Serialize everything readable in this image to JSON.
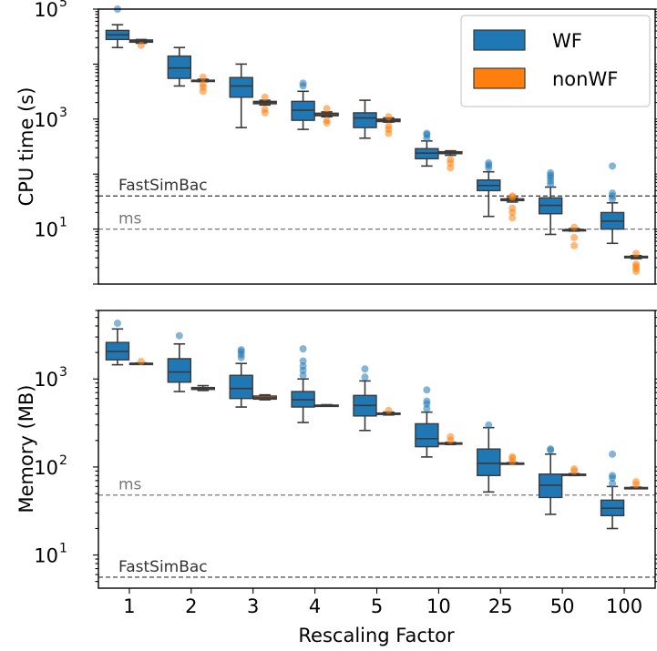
{
  "chart_data": [
    {
      "type": "box",
      "panel": "top",
      "ylabel": "CPU time (s)",
      "yscale": "log",
      "ylim": [
        1,
        100000
      ],
      "y_ticks": [
        {
          "value": 10,
          "base": "10",
          "exp": "1"
        },
        {
          "value": 1000,
          "base": "10",
          "exp": "3"
        },
        {
          "value": 100000,
          "base": "10",
          "exp": "5"
        }
      ],
      "categories": [
        "1",
        "2",
        "3",
        "4",
        "5",
        "10",
        "25",
        "50",
        "100"
      ],
      "legend": {
        "position": "top-right",
        "entries": [
          "WF",
          "nonWF"
        ]
      },
      "reference_lines": [
        {
          "label": "FastSimBac",
          "value": 40,
          "color": "#333333"
        },
        {
          "label": "ms",
          "value": 10,
          "color": "#777777"
        }
      ],
      "series": [
        {
          "name": "WF",
          "color": "#1f77b4",
          "boxes": [
            {
              "whislo": 20000,
              "q1": 28000,
              "med": 34000,
              "q3": 41000,
              "whishi": 52000,
              "fliers": [
                100000
              ]
            },
            {
              "whislo": 4000,
              "q1": 5500,
              "med": 8500,
              "q3": 14000,
              "whishi": 20000,
              "fliers": []
            },
            {
              "whislo": 700,
              "q1": 2500,
              "med": 4000,
              "q3": 5700,
              "whishi": 10000,
              "fliers": []
            },
            {
              "whislo": 650,
              "q1": 950,
              "med": 1450,
              "q3": 2100,
              "whishi": 3200,
              "fliers": [
                4000,
                4500
              ]
            },
            {
              "whislo": 450,
              "q1": 700,
              "med": 1050,
              "q3": 1300,
              "whishi": 2200,
              "fliers": []
            },
            {
              "whislo": 140,
              "q1": 190,
              "med": 240,
              "q3": 290,
              "whishi": 400,
              "fliers": [
                450,
                520,
                550
              ]
            },
            {
              "whislo": 17,
              "q1": 50,
              "med": 62,
              "q3": 78,
              "whishi": 110,
              "fliers": [
                130,
                145,
                160
              ]
            },
            {
              "whislo": 8,
              "q1": 19,
              "med": 27,
              "q3": 37,
              "whishi": 58,
              "fliers": [
                65,
                75,
                85,
                95,
                105
              ]
            },
            {
              "whislo": 5.5,
              "q1": 10,
              "med": 14,
              "q3": 20,
              "whishi": 30,
              "fliers": [
                35,
                40,
                45,
                140
              ]
            }
          ]
        },
        {
          "name": "nonWF",
          "color": "#ff7f0e",
          "boxes": [
            {
              "whislo": 24000,
              "q1": 25000,
              "med": 26000,
              "q3": 27500,
              "whishi": 28000,
              "fliers": [
                22000
              ]
            },
            {
              "whislo": 4800,
              "q1": 4900,
              "med": 5000,
              "q3": 5100,
              "whishi": 5300,
              "fliers": [
                3200,
                3800,
                4300,
                5800
              ]
            },
            {
              "whislo": 1800,
              "q1": 1900,
              "med": 2000,
              "q3": 2100,
              "whishi": 2200,
              "fliers": [
                1300,
                1500,
                2500
              ]
            },
            {
              "whislo": 1100,
              "q1": 1150,
              "med": 1200,
              "q3": 1280,
              "whishi": 1350,
              "fliers": [
                850,
                950,
                1550
              ]
            },
            {
              "whislo": 880,
              "q1": 900,
              "med": 950,
              "q3": 1000,
              "whishi": 1050,
              "fliers": [
                550,
                650,
                750,
                1100
              ]
            },
            {
              "whislo": 220,
              "q1": 235,
              "med": 245,
              "q3": 255,
              "whishi": 265,
              "fliers": [
                130,
                160,
                185
              ]
            },
            {
              "whislo": 31,
              "q1": 33,
              "med": 34,
              "q3": 35.5,
              "whishi": 37,
              "fliers": [
                16,
                20,
                24,
                38,
                40
              ]
            },
            {
              "whislo": 9.2,
              "q1": 9.4,
              "med": 9.6,
              "q3": 9.8,
              "whishi": 10.2,
              "fliers": [
                5,
                7,
                10.8
              ]
            },
            {
              "whislo": 2.9,
              "q1": 3.0,
              "med": 3.1,
              "q3": 3.2,
              "whishi": 3.3,
              "fliers": [
                1.7,
                1.9,
                2.1,
                2.3,
                3.6
              ]
            }
          ]
        }
      ]
    },
    {
      "type": "box",
      "panel": "bottom",
      "ylabel": "Memory (MB)",
      "xlabel": "Rescaling Factor",
      "yscale": "log",
      "ylim": [
        4.2,
        6000
      ],
      "y_ticks": [
        {
          "value": 10,
          "base": "10",
          "exp": "1"
        },
        {
          "value": 100,
          "base": "10",
          "exp": "2"
        },
        {
          "value": 1000,
          "base": "10",
          "exp": "3"
        }
      ],
      "categories": [
        "1",
        "2",
        "3",
        "4",
        "5",
        "10",
        "25",
        "50",
        "100"
      ],
      "reference_lines": [
        {
          "label": "ms",
          "value": 48,
          "color": "#777777"
        },
        {
          "label": "FastSimBac",
          "value": 5.6,
          "color": "#333333"
        }
      ],
      "series": [
        {
          "name": "WF",
          "color": "#1f77b4",
          "boxes": [
            {
              "whislo": 1450,
              "q1": 1650,
              "med": 2050,
              "q3": 2600,
              "whishi": 3700,
              "fliers": [
                4300
              ]
            },
            {
              "whislo": 720,
              "q1": 920,
              "med": 1200,
              "q3": 1700,
              "whishi": 2500,
              "fliers": [
                3100
              ]
            },
            {
              "whislo": 480,
              "q1": 600,
              "med": 780,
              "q3": 1100,
              "whishi": 1500,
              "fliers": [
                1750,
                1900,
                2050,
                2150
              ]
            },
            {
              "whislo": 320,
              "q1": 480,
              "med": 580,
              "q3": 720,
              "whishi": 1000,
              "fliers": [
                1100,
                1250,
                1400,
                1600,
                2200
              ]
            },
            {
              "whislo": 260,
              "q1": 380,
              "med": 500,
              "q3": 650,
              "whishi": 950,
              "fliers": [
                1050,
                1300
              ]
            },
            {
              "whislo": 130,
              "q1": 170,
              "med": 210,
              "q3": 310,
              "whishi": 420,
              "fliers": [
                460,
                520,
                560,
                750
              ]
            },
            {
              "whislo": 52,
              "q1": 80,
              "med": 110,
              "q3": 160,
              "whishi": 280,
              "fliers": [
                300
              ]
            },
            {
              "whislo": 29,
              "q1": 45,
              "med": 62,
              "q3": 83,
              "whishi": 140,
              "fliers": [
                155,
                160
              ]
            },
            {
              "whislo": 20,
              "q1": 28,
              "med": 34,
              "q3": 42,
              "whishi": 60,
              "fliers": [
                65,
                75,
                80,
                140
              ]
            }
          ]
        },
        {
          "name": "nonWF",
          "color": "#ff7f0e",
          "boxes": [
            {
              "whislo": 1480,
              "q1": 1490,
              "med": 1500,
              "q3": 1510,
              "whishi": 1520,
              "fliers": [
                1580
              ]
            },
            {
              "whislo": 740,
              "q1": 760,
              "med": 780,
              "q3": 800,
              "whishi": 840,
              "fliers": []
            },
            {
              "whislo": 580,
              "q1": 590,
              "med": 610,
              "q3": 640,
              "whishi": 660,
              "fliers": []
            },
            {
              "whislo": 490,
              "q1": 495,
              "med": 500,
              "q3": 505,
              "whishi": 510,
              "fliers": []
            },
            {
              "whislo": 390,
              "q1": 395,
              "med": 405,
              "q3": 410,
              "whishi": 420,
              "fliers": [
                440
              ]
            },
            {
              "whislo": 180,
              "q1": 182,
              "med": 185,
              "q3": 188,
              "whishi": 190,
              "fliers": [
                200,
                220
              ]
            },
            {
              "whislo": 108,
              "q1": 109,
              "med": 110,
              "q3": 111,
              "whishi": 112,
              "fliers": [
                115,
                125,
                130
              ]
            },
            {
              "whislo": 80,
              "q1": 81,
              "med": 82,
              "q3": 83,
              "whishi": 84,
              "fliers": [
                90,
                95
              ]
            },
            {
              "whislo": 57,
              "q1": 57.5,
              "med": 58,
              "q3": 58.5,
              "whishi": 59,
              "fliers": [
                63,
                68
              ]
            }
          ]
        }
      ]
    }
  ]
}
